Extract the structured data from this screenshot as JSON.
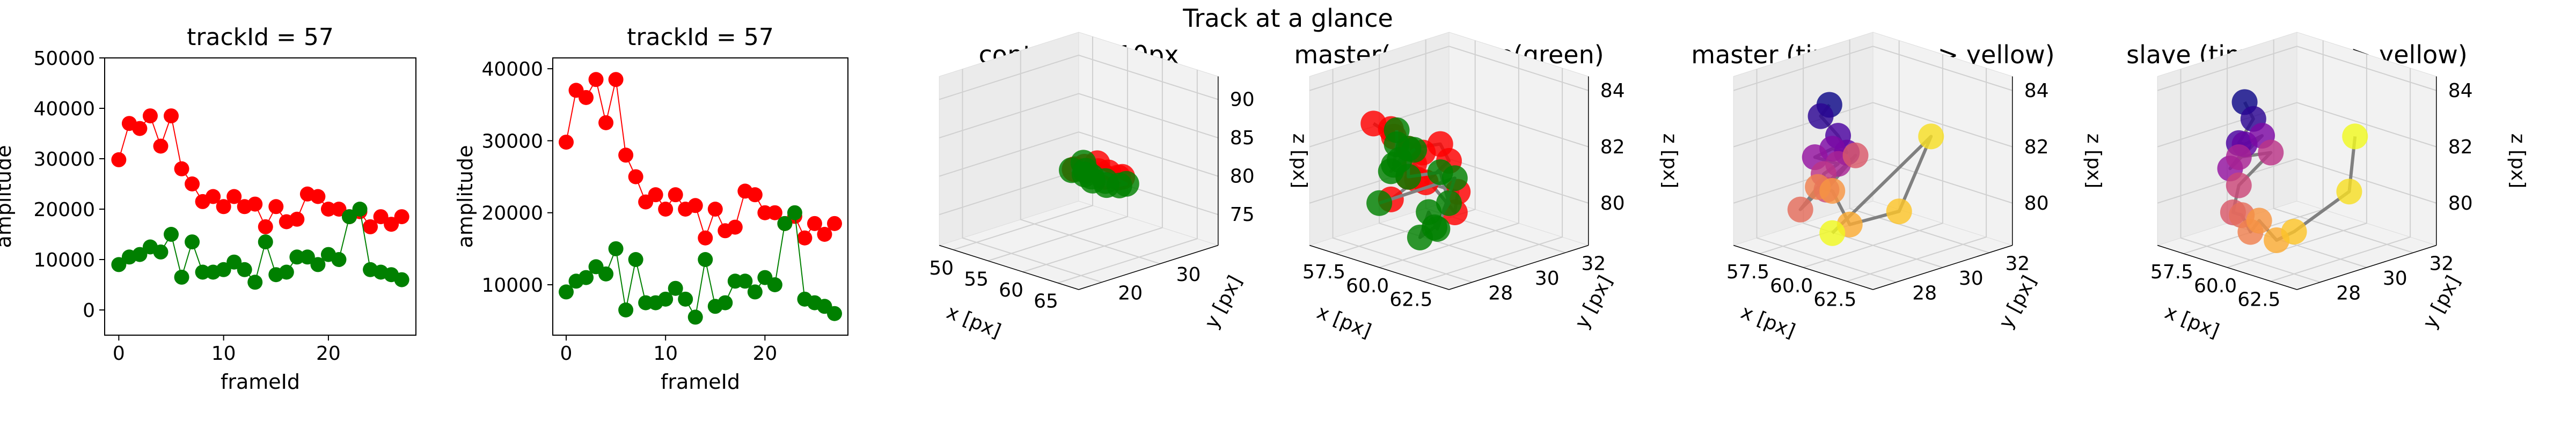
{
  "figure_title": "Track at a glance",
  "colors": {
    "master": "#ff0000",
    "slave": "#008000",
    "trace": "#808080",
    "pane_dark": "#ebebeb",
    "pane_light": "#f2f2f2",
    "grid": "#d0d0d0"
  },
  "chart_data": [
    {
      "type": "line",
      "title": "trackId = 57",
      "xlabel": "frameId",
      "ylabel": "amplitude",
      "xlim": [
        -1.35,
        28.35
      ],
      "ylim": [
        -5000,
        50000
      ],
      "xticks": [
        0,
        10,
        20
      ],
      "yticks": [
        0,
        10000,
        20000,
        30000,
        40000,
        50000
      ],
      "x": [
        0,
        1,
        2,
        3,
        4,
        5,
        6,
        7,
        8,
        9,
        10,
        11,
        12,
        13,
        14,
        15,
        16,
        17,
        18,
        19,
        20,
        21,
        22,
        23,
        24,
        25,
        26,
        27
      ],
      "series": [
        {
          "color": "#ff0000",
          "values": [
            29800,
            37000,
            36000,
            38500,
            32500,
            38500,
            28000,
            25000,
            21500,
            22500,
            20500,
            22500,
            20500,
            21000,
            16500,
            20500,
            17500,
            18000,
            23000,
            22500,
            20000,
            20000,
            18500,
            19500,
            16500,
            18500,
            17000,
            18500
          ]
        },
        {
          "color": "#008000",
          "values": [
            9000,
            10500,
            11000,
            12500,
            11500,
            15000,
            6500,
            13500,
            7500,
            7500,
            8000,
            9500,
            8000,
            5500,
            13500,
            7000,
            7500,
            10500,
            10500,
            9000,
            11000,
            10000,
            18500,
            20000,
            8000,
            7500,
            7000,
            6000
          ]
        }
      ]
    },
    {
      "type": "line",
      "title": "trackId = 57",
      "xlabel": "frameId",
      "ylabel": "amplitude",
      "xlim": [
        -1.35,
        28.35
      ],
      "ylim": [
        3000,
        41500
      ],
      "xticks": [
        0,
        10,
        20
      ],
      "yticks": [
        10000,
        20000,
        30000,
        40000
      ],
      "x": [
        0,
        1,
        2,
        3,
        4,
        5,
        6,
        7,
        8,
        9,
        10,
        11,
        12,
        13,
        14,
        15,
        16,
        17,
        18,
        19,
        20,
        21,
        22,
        23,
        24,
        25,
        26,
        27
      ],
      "series": [
        {
          "color": "#ff0000",
          "values": [
            29800,
            37000,
            36000,
            38500,
            32500,
            38500,
            28000,
            25000,
            21500,
            22500,
            20500,
            22500,
            20500,
            21000,
            16500,
            20500,
            17500,
            18000,
            23000,
            22500,
            20000,
            20000,
            18500,
            19500,
            16500,
            18500,
            17000,
            18500
          ]
        },
        {
          "color": "#008000",
          "values": [
            9000,
            10500,
            11000,
            12500,
            11500,
            15000,
            6500,
            13500,
            7500,
            7500,
            8000,
            9500,
            8000,
            5500,
            13500,
            7000,
            7500,
            10500,
            10500,
            9000,
            11000,
            10000,
            18500,
            20000,
            8000,
            7500,
            7000,
            6000
          ]
        }
      ]
    },
    {
      "type": "scatter",
      "title": "context +- 10px",
      "xlabel": "x [px]",
      "ylabel": "y [px]",
      "zlabel": "z [px]",
      "xlim": [
        48,
        68
      ],
      "ylim": [
        16,
        40
      ],
      "zlim": [
        71,
        93
      ],
      "xticks": [
        50,
        55,
        60,
        65
      ],
      "yticks": [
        20,
        30
      ],
      "zticks": [
        75,
        80,
        85,
        90
      ],
      "series": [
        {
          "color": "#ff0000",
          "points": [
            [
              58,
              29,
              81
            ],
            [
              59,
              30,
              81.5
            ],
            [
              60,
              29,
              81
            ],
            [
              61,
              29.5,
              81
            ],
            [
              62,
              30,
              80.5
            ],
            [
              57,
              28.5,
              80.5
            ],
            [
              60,
              30,
              80
            ],
            [
              63,
              29.5,
              81
            ]
          ]
        },
        {
          "color": "#008000",
          "points": [
            [
              57,
              28,
              80.5
            ],
            [
              58,
              29,
              80
            ],
            [
              59,
              29,
              80
            ],
            [
              60,
              28,
              80
            ],
            [
              61,
              29,
              80
            ],
            [
              62,
              28,
              80
            ],
            [
              63,
              29,
              80
            ],
            [
              64,
              29,
              80.5
            ],
            [
              57,
              30,
              81
            ],
            [
              59,
              28,
              81
            ]
          ]
        }
      ]
    },
    {
      "type": "scatter",
      "title": "master(red) slave(green)",
      "xlabel": "x [px]",
      "ylabel": "y [px]",
      "zlabel": "z [px]",
      "xlim": [
        56,
        64
      ],
      "ylim": [
        27,
        33
      ],
      "zlim": [
        78.5,
        84.5
      ],
      "xticks": [
        57.5,
        60.0,
        62.5
      ],
      "yticks": [
        28,
        30,
        32
      ],
      "zticks": [
        80,
        82,
        84
      ],
      "series": [
        {
          "color": "#ff0000",
          "points": [
            [
              57,
              29,
              82.5
            ],
            [
              57.5,
              29.5,
              82
            ],
            [
              58,
              29,
              82.5
            ],
            [
              58.5,
              30,
              81.5
            ],
            [
              59,
              29,
              82
            ],
            [
              59.5,
              30,
              82
            ],
            [
              60,
              30,
              81.5
            ],
            [
              60,
              29,
              81
            ],
            [
              60.5,
              30,
              80.5
            ],
            [
              61,
              29.5,
              80
            ],
            [
              58,
              30,
              81
            ],
            [
              59,
              29,
              81
            ],
            [
              59.5,
              29,
              81
            ],
            [
              58,
              29,
              80
            ]
          ]
        },
        {
          "color": "#008000",
          "points": [
            [
              57,
              30,
              82
            ],
            [
              57,
              30,
              81.5
            ],
            [
              57.5,
              29.5,
              81
            ],
            [
              58,
              30,
              81.5
            ],
            [
              58,
              29,
              81
            ],
            [
              58.5,
              29,
              81.5
            ],
            [
              59,
              29,
              82
            ],
            [
              59,
              29,
              81
            ],
            [
              59.5,
              30,
              81
            ],
            [
              60,
              30,
              80
            ],
            [
              60.5,
              29,
              79.5
            ],
            [
              61,
              28,
              79.5
            ],
            [
              61.5,
              28,
              80.5
            ],
            [
              62,
              28,
              80
            ],
            [
              63,
              28,
              82
            ],
            [
              58,
              28.5,
              80
            ]
          ]
        }
      ]
    },
    {
      "type": "scatter",
      "title": "master (time: blue -> yellow)",
      "xlabel": "x [px]",
      "ylabel": "y [px]",
      "zlabel": "z [px]",
      "xlim": [
        56,
        64
      ],
      "ylim": [
        27,
        33
      ],
      "zlim": [
        78.5,
        84.5
      ],
      "xticks": [
        57.5,
        60.0,
        62.5
      ],
      "yticks": [
        28,
        30,
        32
      ],
      "zticks": [
        80,
        82,
        84
      ],
      "series": [
        {
          "colormap": "plasma",
          "points": [
            [
              57.5,
              30,
              83
            ],
            [
              57,
              30,
              82.5
            ],
            [
              58,
              30,
              82
            ],
            [
              58.5,
              30,
              81.5
            ],
            [
              59,
              29,
              82
            ],
            [
              58,
              29,
              81.5
            ],
            [
              58,
              30,
              81
            ],
            [
              58.5,
              29,
              81
            ],
            [
              60,
              28,
              81
            ],
            [
              59,
              30,
              81.5
            ],
            [
              58.5,
              28,
              80
            ],
            [
              59.5,
              28,
              81
            ],
            [
              59,
              29,
              80.5
            ],
            [
              60,
              29,
              79.5
            ],
            [
              61.5,
              30,
              80
            ],
            [
              62,
              31,
              82.5
            ],
            [
              59,
              29,
              79
            ]
          ]
        }
      ]
    },
    {
      "type": "scatter",
      "title": "slave (time: blue -> yellow)",
      "xlabel": "x [px]",
      "ylabel": "y [px]",
      "zlabel": "z [px]",
      "xlim": [
        56,
        64
      ],
      "ylim": [
        27,
        33
      ],
      "zlim": [
        78.5,
        84.5
      ],
      "xticks": [
        57.5,
        60.0,
        62.5
      ],
      "yticks": [
        28,
        30,
        32
      ],
      "zticks": [
        80,
        82,
        84
      ],
      "series": [
        {
          "colormap": "plasma",
          "points": [
            [
              57,
              30,
              83
            ],
            [
              57.5,
              30,
              82.5
            ],
            [
              58,
              29,
              82
            ],
            [
              57,
              30,
              81.5
            ],
            [
              58,
              30,
              82
            ],
            [
              57.5,
              29,
              81
            ],
            [
              58,
              29,
              81.5
            ],
            [
              58.5,
              30,
              81.5
            ],
            [
              58,
              29,
              80.5
            ],
            [
              59,
              28,
              80
            ],
            [
              59.5,
              28,
              80
            ],
            [
              60,
              28,
              79.5
            ],
            [
              60.5,
              28,
              80
            ],
            [
              61.5,
              28,
              79.5
            ],
            [
              62.5,
              28,
              80
            ],
            [
              63,
              30,
              81
            ],
            [
              62,
              31,
              82.5
            ]
          ]
        }
      ]
    }
  ]
}
